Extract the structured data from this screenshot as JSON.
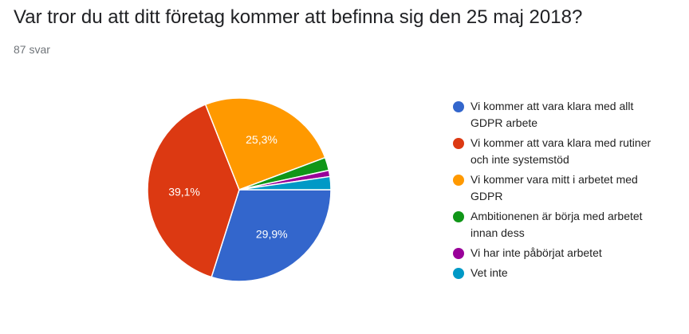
{
  "question": {
    "title": "Var tror du att ditt företag kommer att befinna sig den 25 maj 2018?",
    "response_count": "87 svar"
  },
  "chart_data": {
    "type": "pie",
    "title": "Var tror du att ditt företag kommer att befinna sig den 25 maj 2018?",
    "legend_position": "right",
    "slices": [
      {
        "label": "Vi kommer att vara klara med allt GDPR arbete",
        "value": 29.9,
        "display": "29,9%",
        "color": "#3366cc"
      },
      {
        "label": "Vi kommer att vara klara med rutiner och inte systemstöd",
        "value": 39.1,
        "display": "39,1%",
        "color": "#dc3912"
      },
      {
        "label": "Vi kommer vara mitt i arbetet med GDPR",
        "value": 25.3,
        "display": "25,3%",
        "color": "#ff9900"
      },
      {
        "label": "Ambitionenen är börja med arbetet innan dess",
        "value": 2.3,
        "display": "",
        "color": "#109618"
      },
      {
        "label": "Vi har inte påbörjat arbetet",
        "value": 1.1,
        "display": "",
        "color": "#990099"
      },
      {
        "label": "Vet inte",
        "value": 2.3,
        "display": "",
        "color": "#0099c6"
      }
    ]
  }
}
